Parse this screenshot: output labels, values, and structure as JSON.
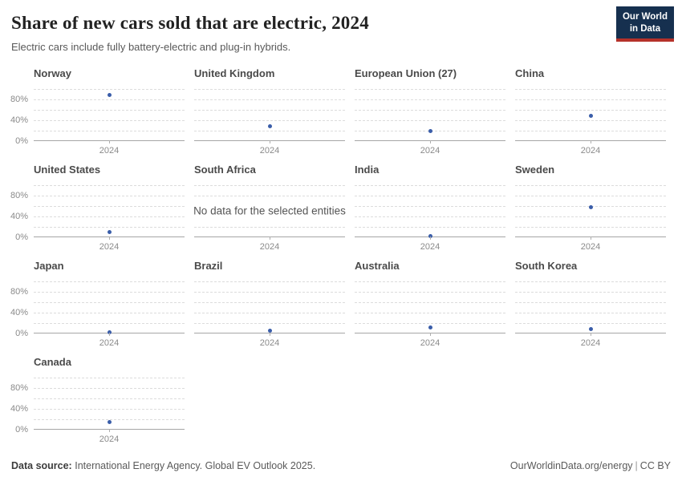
{
  "header": {
    "title": "Share of new cars sold that are electric, 2024",
    "subtitle": "Electric cars include fully battery-electric and plug-in hybrids.",
    "logo": {
      "line1": "Our World",
      "line2": "in Data",
      "bg_color": "#16304f",
      "accent_color": "#b5312a"
    }
  },
  "chart_data": {
    "type": "scatter",
    "title": "Share of new cars sold that are electric, 2024",
    "x": [
      2024
    ],
    "x_tick_label": "2024",
    "ylabel": "",
    "ylim": [
      0,
      100
    ],
    "y_tick_labels": [
      "0%",
      "40%",
      "80%"
    ],
    "gridline_values": [
      20,
      40,
      60,
      80,
      100
    ],
    "grid": "dashed",
    "point_color": "#3a5da9",
    "no_data_message": "No data for the selected entities",
    "unit": "%",
    "facets": [
      {
        "name": "Norway",
        "value": 89
      },
      {
        "name": "United Kingdom",
        "value": 28
      },
      {
        "name": "European Union (27)",
        "value": 20
      },
      {
        "name": "China",
        "value": 48
      },
      {
        "name": "United States",
        "value": 10
      },
      {
        "name": "South Africa",
        "value": null
      },
      {
        "name": "India",
        "value": 3
      },
      {
        "name": "Sweden",
        "value": 57
      },
      {
        "name": "Japan",
        "value": 2
      },
      {
        "name": "Brazil",
        "value": 6
      },
      {
        "name": "Australia",
        "value": 11
      },
      {
        "name": "South Korea",
        "value": 8
      },
      {
        "name": "Canada",
        "value": 15
      }
    ]
  },
  "footer": {
    "datasource_label": "Data source:",
    "datasource_text": "International Energy Agency. Global EV Outlook 2025.",
    "link": "OurWorldinData.org/energy",
    "separator": "|",
    "license": "CC BY"
  }
}
